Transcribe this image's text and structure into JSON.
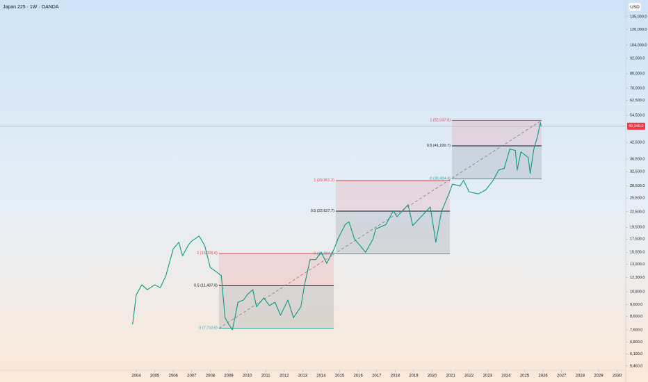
{
  "chart_data": {
    "type": "line",
    "title": "Japan 225 · 1W · OANDA",
    "currency": "USD",
    "log_scale": true,
    "color": "#089981",
    "xlim": [
      1996.63,
      2030.47
    ],
    "xticks": [
      2004,
      2005,
      2006,
      2007,
      2008,
      2009,
      2010,
      2011,
      2012,
      2013,
      2014,
      2015,
      2016,
      2017,
      2018,
      2019,
      2020,
      2021,
      2022,
      2023,
      2024,
      2025,
      2026,
      2027,
      2028,
      2029,
      2030
    ],
    "ylim": [
      4710,
      157300
    ],
    "yticks": [
      {
        "value": 135000,
        "label": "135,000.0"
      },
      {
        "value": 120000,
        "label": "120,000.0"
      },
      {
        "value": 104000,
        "label": "104,000.0"
      },
      {
        "value": 92000,
        "label": "92,000.0"
      },
      {
        "value": 80000,
        "label": "80,000.0"
      },
      {
        "value": 70000,
        "label": "70,000.0"
      },
      {
        "value": 62500,
        "label": "62,500.0"
      },
      {
        "value": 54500,
        "label": "54,500.0"
      },
      {
        "value": 42500,
        "label": "42,500.0"
      },
      {
        "value": 36500,
        "label": "36,500.0"
      },
      {
        "value": 32500,
        "label": "32,500.0"
      },
      {
        "value": 28500,
        "label": "28,500.0"
      },
      {
        "value": 25500,
        "label": "25,500.0"
      },
      {
        "value": 22500,
        "label": "22,500.0"
      },
      {
        "value": 19500,
        "label": "19,500.0"
      },
      {
        "value": 17500,
        "label": "17,500.0"
      },
      {
        "value": 15500,
        "label": "15,500.0"
      },
      {
        "value": 13900,
        "label": "13,900.0"
      },
      {
        "value": 12300,
        "label": "12,300.0"
      },
      {
        "value": 10800,
        "label": "10,800.0"
      },
      {
        "value": 9600,
        "label": "9,600.0"
      },
      {
        "value": 8600,
        "label": "8,600.0"
      },
      {
        "value": 7600,
        "label": "7,600.0"
      },
      {
        "value": 6800,
        "label": "6,800.0"
      },
      {
        "value": 6100,
        "label": "6,100.0"
      },
      {
        "value": 5460,
        "label": "5,460.0"
      }
    ],
    "current_price": {
      "value": 49348,
      "label": "49,348.0"
    },
    "x": [
      2003.8,
      2004.0,
      2004.3,
      2004.6,
      2005.0,
      2005.3,
      2005.6,
      2006.0,
      2006.3,
      2006.5,
      2006.8,
      2007.0,
      2007.4,
      2007.7,
      2008.0,
      2008.3,
      2008.6,
      2008.8,
      2009.0,
      2009.2,
      2009.5,
      2009.8,
      2010.0,
      2010.3,
      2010.5,
      2010.9,
      2011.2,
      2011.5,
      2011.8,
      2012.2,
      2012.5,
      2012.9,
      2013.1,
      2013.4,
      2013.7,
      2014.0,
      2014.3,
      2014.7,
      2014.9,
      2015.3,
      2015.5,
      2015.8,
      2016.1,
      2016.4,
      2016.8,
      2016.95,
      2017.5,
      2017.9,
      2018.1,
      2018.7,
      2018.95,
      2019.4,
      2019.9,
      2020.2,
      2020.5,
      2020.9,
      2021.1,
      2021.5,
      2021.7,
      2022.0,
      2022.5,
      2022.9,
      2023.3,
      2023.6,
      2023.9,
      2024.2,
      2024.5,
      2024.6,
      2024.8,
      2025.2,
      2025.3,
      2025.5,
      2025.7,
      2025.85,
      2025.9
    ],
    "values": [
      8000,
      10500,
      11500,
      11000,
      11500,
      11200,
      12500,
      16000,
      17000,
      15000,
      16500,
      17200,
      18000,
      16500,
      13500,
      13000,
      12500,
      8500,
      8000,
      7600,
      9800,
      10000,
      10500,
      11000,
      9400,
      10200,
      9500,
      9800,
      8700,
      10000,
      8500,
      9400,
      11500,
      14500,
      14500,
      15500,
      14000,
      16000,
      17500,
      20000,
      20500,
      17500,
      16500,
      15500,
      17500,
      19200,
      20000,
      22700,
      21500,
      24000,
      19800,
      21500,
      23500,
      17000,
      22500,
      26500,
      29000,
      28500,
      30000,
      27000,
      26500,
      27500,
      30000,
      33000,
      33500,
      40000,
      39500,
      33000,
      39000,
      37000,
      32000,
      40000,
      45000,
      51000,
      49348
    ],
    "level_colors": [
      "#f23645",
      "#131722",
      "#26a69a"
    ],
    "fib_boxes": [
      {
        "x": [
          2008.47,
          2014.68
        ],
        "levels": [
          {
            "value": 15325.0,
            "label": "1 (15,325.0)"
          },
          {
            "value": 11407.8,
            "label": "0.5 (11,407.8)"
          },
          {
            "value": 7710.6,
            "label": "0 (7,710.6)"
          }
        ]
      },
      {
        "x": [
          2014.79,
          2020.96
        ],
        "levels": [
          {
            "value": 29961.2,
            "label": "1 (29,961.2)"
          },
          {
            "value": 22627.7,
            "label": "0.5 (22,627.7)"
          },
          {
            "value": 15294.2,
            "label": "0 (15,294.2)"
          }
        ]
      },
      {
        "x": [
          2021.07,
          2025.92
        ],
        "levels": [
          {
            "value": 52037.0,
            "label": "1 (52,037.0)"
          },
          {
            "value": 41220.7,
            "label": "0.5 (41,220.7)"
          },
          {
            "value": 30404.4,
            "label": "0 (30,404.4)"
          }
        ]
      }
    ]
  }
}
